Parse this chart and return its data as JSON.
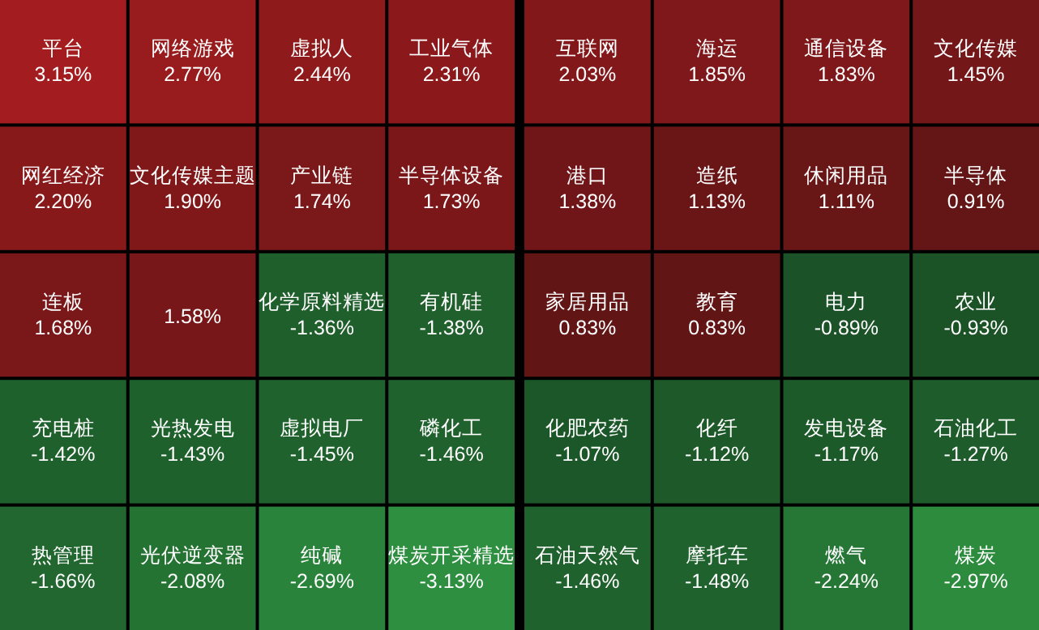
{
  "chart_data": {
    "type": "other",
    "categories": [
      "平台",
      "网络游戏",
      "虚拟人",
      "工业气体",
      "互联网",
      "海运",
      "通信设备",
      "文化传媒",
      "网红经济",
      "文化传媒主题",
      "产业链",
      "半导体设备",
      "港口",
      "造纸",
      "休闲用品",
      "半导体",
      "连板",
      null,
      "化学原料精选",
      "有机硅",
      "家居用品",
      "教育",
      "电力",
      "农业",
      "充电桩",
      "光热发电",
      "虚拟电厂",
      "磷化工",
      "化肥农药",
      "化纤",
      "发电设备",
      "石油化工",
      "热管理",
      "光伏逆变器",
      "纯碱",
      "煤炭开采精选",
      "石油天然气",
      "摩托车",
      "燃气",
      "煤炭"
    ],
    "values": [
      3.15,
      2.77,
      2.44,
      2.31,
      2.03,
      1.85,
      1.83,
      1.45,
      2.2,
      1.9,
      1.74,
      1.73,
      1.38,
      1.13,
      1.11,
      0.91,
      1.68,
      1.58,
      -1.36,
      -1.38,
      0.83,
      0.83,
      -0.89,
      -0.93,
      -1.42,
      -1.43,
      -1.45,
      -1.46,
      -1.07,
      -1.12,
      -1.17,
      -1.27,
      -1.66,
      -2.08,
      -2.69,
      -3.13,
      -1.46,
      -1.48,
      -2.24,
      -2.97
    ],
    "value_labels": [
      "3.15%",
      "2.77%",
      "2.44%",
      "2.31%",
      "2.03%",
      "1.85%",
      "1.83%",
      "1.45%",
      "2.20%",
      "1.90%",
      "1.74%",
      "1.73%",
      "1.38%",
      "1.13%",
      "1.11%",
      "0.91%",
      "1.68%",
      "1.58%",
      "-1.36%",
      "-1.38%",
      "0.83%",
      "0.83%",
      "-0.89%",
      "-0.93%",
      "-1.42%",
      "-1.43%",
      "-1.45%",
      "-1.46%",
      "-1.07%",
      "-1.12%",
      "-1.17%",
      "-1.27%",
      "-1.66%",
      "-2.08%",
      "-2.69%",
      "-3.13%",
      "-1.46%",
      "-1.48%",
      "-2.24%",
      "-2.97%"
    ]
  }
}
